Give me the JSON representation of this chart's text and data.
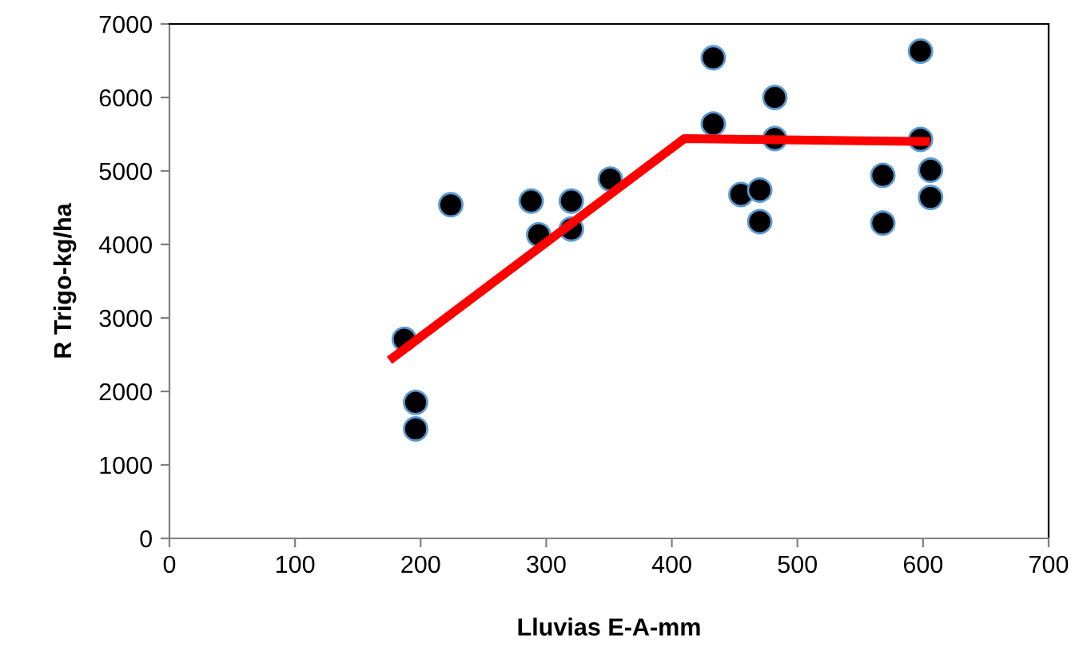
{
  "chart_data": {
    "type": "scatter",
    "xlabel": "Lluvias E-A-mm",
    "ylabel": "R Trigo-kg/ha",
    "xlim": [
      0,
      700
    ],
    "ylim": [
      0,
      7000
    ],
    "xticks": [
      0,
      100,
      200,
      300,
      400,
      500,
      600,
      700
    ],
    "yticks": [
      0,
      1000,
      2000,
      3000,
      4000,
      5000,
      6000,
      7000
    ],
    "grid": false,
    "legend": false,
    "series": [
      {
        "color": "#000000",
        "marker": "circle",
        "x": [
          187,
          196,
          196,
          224,
          288,
          294,
          320,
          320,
          351,
          433,
          433,
          455,
          470,
          470,
          482,
          482,
          568,
          568,
          598,
          598,
          606,
          606
        ],
        "values": [
          2710,
          1850,
          1490,
          4540,
          4590,
          4130,
          4590,
          4210,
          4890,
          6540,
          5640,
          4680,
          4740,
          4310,
          6000,
          5440,
          4940,
          4290,
          6630,
          5430,
          5010,
          4640
        ]
      },
      {
        "type": "line",
        "color": "#ff0000",
        "marker": "none",
        "line_style": "solid",
        "x": [
          178,
          410,
          602
        ],
        "values": [
          2460,
          5440,
          5400
        ]
      }
    ]
  }
}
